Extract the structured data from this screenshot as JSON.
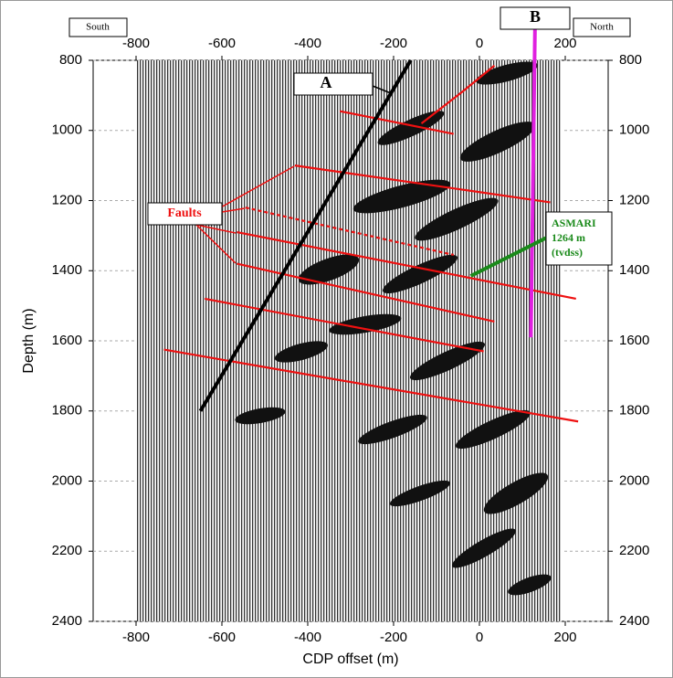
{
  "chart_data": {
    "type": "seismic-section",
    "xlabel": "CDP offset (m)",
    "ylabel": "Depth (m)",
    "xlim": [
      -900,
      300
    ],
    "ylim": [
      800,
      2400
    ],
    "y_inverted": true,
    "grid": true,
    "xticks": [
      -800,
      -600,
      -400,
      -200,
      0,
      200
    ],
    "yticks": [
      800,
      1000,
      1200,
      1400,
      1600,
      1800,
      2000,
      2200,
      2400
    ],
    "annotations": {
      "south": "South",
      "north": "North",
      "a": "A",
      "b": "B",
      "faults": "Faults",
      "asmari": [
        "ASMARI",
        "1264 m",
        "(tvdss)"
      ]
    },
    "lines": [
      {
        "name": "A",
        "color": "#000000",
        "x": [
          -650,
          -160
        ],
        "y": [
          1800,
          800
        ]
      },
      {
        "name": "B",
        "color": "#e020e0",
        "x": [
          130,
          120
        ],
        "y": [
          660,
          1590
        ]
      },
      {
        "name": "ASMARI",
        "color": "#1a8a1a",
        "x": [
          -20,
          190
        ],
        "y": [
          1415,
          1285
        ]
      }
    ],
    "faults": [
      {
        "x": [
          -325,
          -60
        ],
        "y": [
          945,
          1010
        ]
      },
      {
        "x": [
          -135,
          -40,
          35
        ],
        "y": [
          980,
          890,
          815
        ]
      },
      {
        "x": [
          -430,
          165
        ],
        "y": [
          1100,
          1205
        ]
      },
      {
        "x": [
          -545,
          -60
        ],
        "y": [
          1220,
          1355
        ],
        "dashed": true
      },
      {
        "x": [
          -565,
          225
        ],
        "y": [
          1290,
          1480
        ]
      },
      {
        "x": [
          -565,
          35
        ],
        "y": [
          1380,
          1545
        ]
      },
      {
        "x": [
          -640,
          10
        ],
        "y": [
          1480,
          1630
        ]
      },
      {
        "x": [
          -735,
          230
        ],
        "y": [
          1625,
          1830
        ]
      }
    ],
    "fault_color": "#ee1111"
  }
}
